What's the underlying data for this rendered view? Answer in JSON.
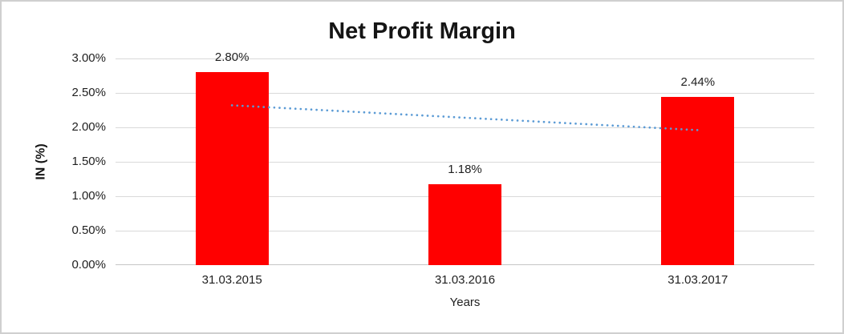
{
  "chart_data": {
    "type": "bar",
    "title": "Net Profit Margin",
    "categories": [
      "31.03.2015",
      "31.03.2016",
      "31.03.2017"
    ],
    "values": [
      2.8,
      1.18,
      2.44
    ],
    "value_labels": [
      "2.80%",
      "1.18%",
      "2.44%"
    ],
    "xlabel": "Years",
    "ylabel": "IN (%)",
    "ylim": [
      0,
      3
    ],
    "ytick_step": 0.5,
    "ytick_labels_bottom_to_top": [
      "0.00%",
      "0.50%",
      "1.00%",
      "1.50%",
      "2.00%",
      "2.50%",
      "3.00%"
    ],
    "grid": true,
    "legend": "none",
    "bar_color": "#FF0000",
    "gridline_color": "#D9D9D9",
    "trendline": {
      "type": "linear_dotted",
      "start_value": 2.32,
      "end_value": 1.96,
      "color": "#5B9BD5"
    }
  }
}
